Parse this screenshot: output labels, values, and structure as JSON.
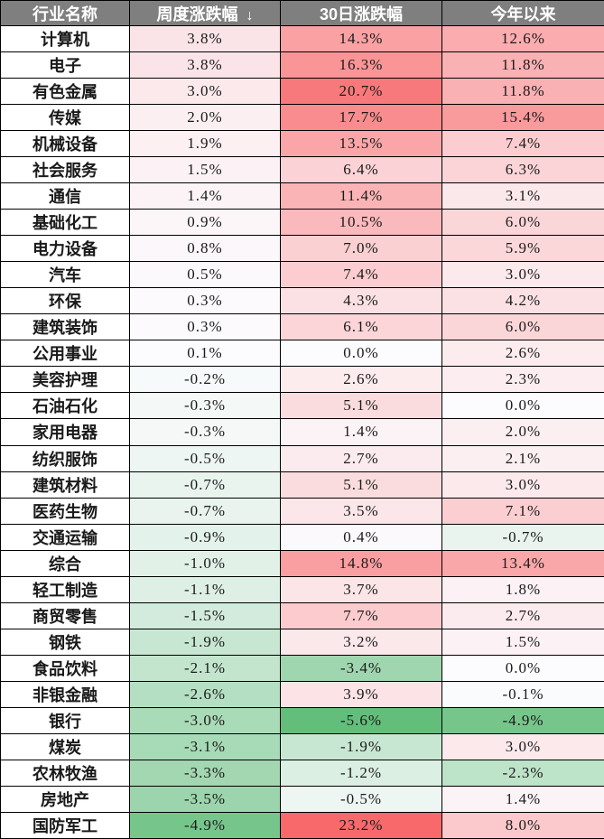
{
  "header": {
    "industry": "行业名称",
    "weekly": "周度涨跌幅",
    "weekly_sort_indicator": "↓",
    "monthly": "30日涨跌幅",
    "ytd": "今年以来"
  },
  "chart_data": {
    "type": "heatmap",
    "columns": [
      "行业名称",
      "周度涨跌幅",
      "30日涨跌幅",
      "今年以来"
    ],
    "value_unit": "%",
    "value_decimals": 1,
    "sort": {
      "column": "周度涨跌幅",
      "direction": "desc"
    },
    "rows": [
      {
        "name": "计算机",
        "weekly": 3.8,
        "monthly": 14.3,
        "ytd": 12.6
      },
      {
        "name": "电子",
        "weekly": 3.8,
        "monthly": 16.3,
        "ytd": 11.8
      },
      {
        "name": "有色金属",
        "weekly": 3.0,
        "monthly": 20.7,
        "ytd": 11.8
      },
      {
        "name": "传媒",
        "weekly": 2.0,
        "monthly": 17.7,
        "ytd": 15.4
      },
      {
        "name": "机械设备",
        "weekly": 1.9,
        "monthly": 13.5,
        "ytd": 7.4
      },
      {
        "name": "社会服务",
        "weekly": 1.5,
        "monthly": 6.4,
        "ytd": 6.3
      },
      {
        "name": "通信",
        "weekly": 1.4,
        "monthly": 11.4,
        "ytd": 3.1
      },
      {
        "name": "基础化工",
        "weekly": 0.9,
        "monthly": 10.5,
        "ytd": 6.0
      },
      {
        "name": "电力设备",
        "weekly": 0.8,
        "monthly": 7.0,
        "ytd": 5.9
      },
      {
        "name": "汽车",
        "weekly": 0.5,
        "monthly": 7.4,
        "ytd": 3.0
      },
      {
        "name": "环保",
        "weekly": 0.3,
        "monthly": 4.3,
        "ytd": 4.2
      },
      {
        "name": "建筑装饰",
        "weekly": 0.3,
        "monthly": 6.1,
        "ytd": 6.0
      },
      {
        "name": "公用事业",
        "weekly": 0.1,
        "monthly": 0.0,
        "ytd": 2.6
      },
      {
        "name": "美容护理",
        "weekly": -0.2,
        "monthly": 2.6,
        "ytd": 2.3
      },
      {
        "name": "石油石化",
        "weekly": -0.3,
        "monthly": 5.1,
        "ytd": 0.0
      },
      {
        "name": "家用电器",
        "weekly": -0.3,
        "monthly": 1.4,
        "ytd": 2.0
      },
      {
        "name": "纺织服饰",
        "weekly": -0.5,
        "monthly": 2.7,
        "ytd": 2.1
      },
      {
        "name": "建筑材料",
        "weekly": -0.7,
        "monthly": 5.1,
        "ytd": 3.0
      },
      {
        "name": "医药生物",
        "weekly": -0.7,
        "monthly": 3.5,
        "ytd": 7.1
      },
      {
        "name": "交通运输",
        "weekly": -0.9,
        "monthly": 0.4,
        "ytd": -0.7
      },
      {
        "name": "综合",
        "weekly": -1.0,
        "monthly": 14.8,
        "ytd": 13.4
      },
      {
        "name": "轻工制造",
        "weekly": -1.1,
        "monthly": 3.7,
        "ytd": 1.8
      },
      {
        "name": "商贸零售",
        "weekly": -1.5,
        "monthly": 7.7,
        "ytd": 2.7
      },
      {
        "name": "钢铁",
        "weekly": -1.9,
        "monthly": 3.2,
        "ytd": 1.5
      },
      {
        "name": "食品饮料",
        "weekly": -2.1,
        "monthly": -3.4,
        "ytd": 0.0
      },
      {
        "name": "非银金融",
        "weekly": -2.6,
        "monthly": 3.9,
        "ytd": -0.1
      },
      {
        "name": "银行",
        "weekly": -3.0,
        "monthly": -5.6,
        "ytd": -4.9
      },
      {
        "name": "煤炭",
        "weekly": -3.1,
        "monthly": -1.9,
        "ytd": 3.0
      },
      {
        "name": "农林牧渔",
        "weekly": -3.3,
        "monthly": -1.2,
        "ytd": -2.3
      },
      {
        "name": "房地产",
        "weekly": -3.5,
        "monthly": -0.5,
        "ytd": 1.4
      },
      {
        "name": "国防军工",
        "weekly": -4.9,
        "monthly": 23.2,
        "ytd": 8.0
      }
    ],
    "color_scale": {
      "max_value": 23.2,
      "mid_value": 0,
      "min_value": -5.6,
      "max_color": "#F8696B",
      "mid_color": "#FCFCFF",
      "min_color": "#63BE7B"
    },
    "colors": {
      "header_bg": "#7F7F7F",
      "header_text": "#FFFFFF",
      "border": "#000000",
      "name_cell_bg": "#FFFFFF",
      "cell_text": "#1A1A1A"
    }
  }
}
